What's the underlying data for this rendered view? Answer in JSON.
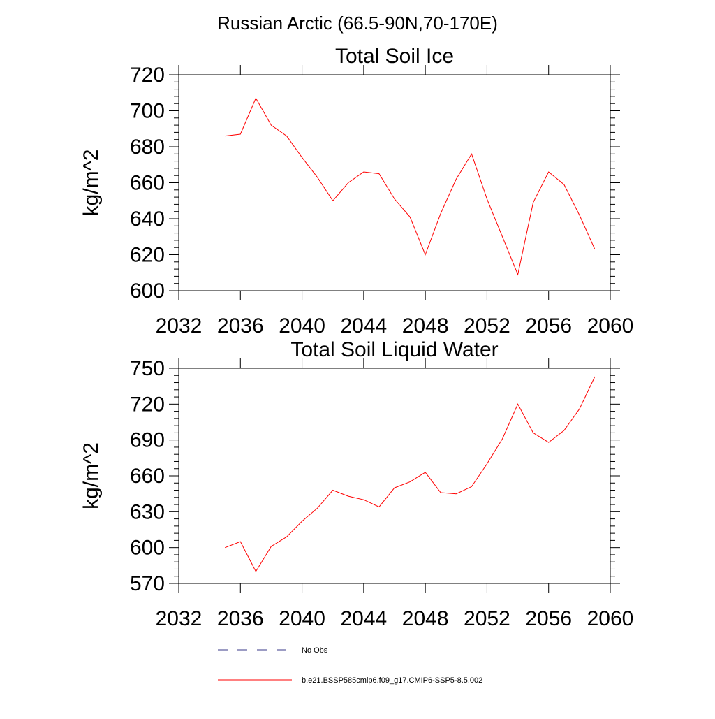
{
  "figure": {
    "title": "Russian Arctic (66.5-90N,70-170E)"
  },
  "legend": [
    {
      "label": "No Obs",
      "color": "#3a3a8a",
      "style": "dashed"
    },
    {
      "label": "b.e21.BSSP585cmip6.f09_g17.CMIP6-SSP5-8.5.002",
      "color": "#ff0000",
      "style": "solid"
    }
  ],
  "chart_data": [
    {
      "type": "line",
      "title": "Total Soil Ice",
      "xlabel": "",
      "ylabel": "kg/m^2",
      "xlim": [
        2032,
        2060
      ],
      "ylim": [
        600,
        720
      ],
      "xticks": [
        2032,
        2036,
        2040,
        2044,
        2048,
        2052,
        2056,
        2060
      ],
      "yticks": [
        600,
        620,
        640,
        660,
        680,
        700,
        720
      ],
      "grid": false,
      "series": [
        {
          "color": "#ff0000",
          "x": [
            2035,
            2036,
            2037,
            2038,
            2039,
            2040,
            2041,
            2042,
            2043,
            2044,
            2045,
            2046,
            2047,
            2048,
            2049,
            2050,
            2051,
            2052,
            2053,
            2054,
            2055,
            2056,
            2057,
            2058,
            2059
          ],
          "values": [
            686,
            687,
            707,
            692,
            686,
            674,
            663,
            650,
            660,
            666,
            665,
            651,
            641,
            620,
            643,
            662,
            676,
            651,
            630,
            609,
            649,
            666,
            659,
            642,
            623
          ]
        }
      ]
    },
    {
      "type": "line",
      "title": "Total Soil Liquid Water",
      "xlabel": "",
      "ylabel": "kg/m^2",
      "xlim": [
        2032,
        2060
      ],
      "ylim": [
        570,
        750
      ],
      "xticks": [
        2032,
        2036,
        2040,
        2044,
        2048,
        2052,
        2056,
        2060
      ],
      "yticks": [
        570,
        600,
        630,
        660,
        690,
        720,
        750
      ],
      "grid": false,
      "series": [
        {
          "color": "#ff0000",
          "x": [
            2035,
            2036,
            2037,
            2038,
            2039,
            2040,
            2041,
            2042,
            2043,
            2044,
            2045,
            2046,
            2047,
            2048,
            2049,
            2050,
            2051,
            2052,
            2053,
            2054,
            2055,
            2056,
            2057,
            2058,
            2059
          ],
          "values": [
            600,
            605,
            580,
            601,
            609,
            622,
            633,
            648,
            643,
            640,
            634,
            650,
            655,
            663,
            646,
            645,
            651,
            670,
            691,
            720,
            696,
            688,
            698,
            716,
            743
          ]
        }
      ]
    }
  ]
}
